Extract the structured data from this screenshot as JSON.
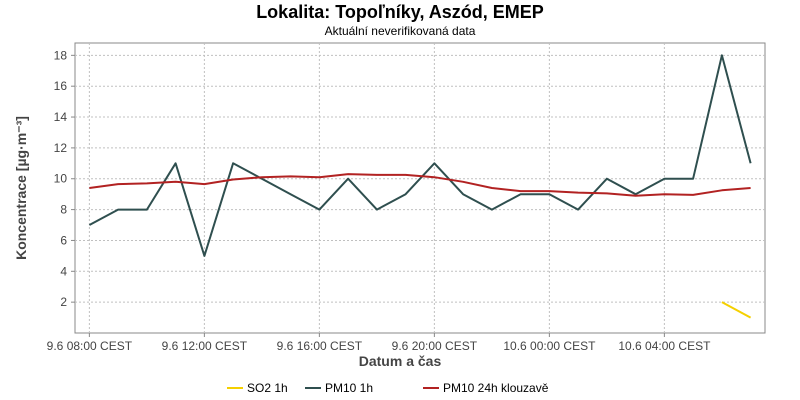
{
  "chart_data": {
    "type": "line",
    "title": "Lokalita: Topoľníky, Aszód, EMEP",
    "subtitle": "Aktuální neverifikovaná data",
    "xlabel": "Datum a čas",
    "ylabel": "Koncentrace [µg·m⁻³]",
    "x_tick_labels": [
      "9.6 08:00 CEST",
      "9.6 12:00 CEST",
      "9.6 16:00 CEST",
      "9.6 20:00 CEST",
      "10.6 00:00 CEST",
      "10.6 04:00 CEST"
    ],
    "x_tick_hours": [
      0,
      4,
      8,
      12,
      16,
      20
    ],
    "x_range_hours": [
      -0.5,
      23.5
    ],
    "y_ticks": [
      2,
      4,
      6,
      8,
      10,
      12,
      14,
      16,
      18
    ],
    "ylim": [
      0,
      18.8
    ],
    "grid": true,
    "legend_position": "bottom",
    "series": [
      {
        "name": "SO2 1h",
        "color": "#f5d000",
        "points": [
          [
            22,
            2
          ],
          [
            23,
            1
          ]
        ]
      },
      {
        "name": "PM10 1h",
        "color": "#2f4f4f",
        "points": [
          [
            0,
            7
          ],
          [
            1,
            8
          ],
          [
            2,
            8
          ],
          [
            3,
            11
          ],
          [
            4,
            5
          ],
          [
            5,
            11
          ],
          [
            6,
            10
          ],
          [
            7,
            9
          ],
          [
            8,
            8
          ],
          [
            9,
            10
          ],
          [
            10,
            8
          ],
          [
            11,
            9
          ],
          [
            12,
            11
          ],
          [
            13,
            9
          ],
          [
            14,
            8
          ],
          [
            15,
            9
          ],
          [
            16,
            9
          ],
          [
            17,
            8
          ],
          [
            18,
            10
          ],
          [
            19,
            9
          ],
          [
            20,
            10
          ],
          [
            21,
            10
          ],
          [
            22,
            18
          ],
          [
            23,
            11
          ]
        ]
      },
      {
        "name": "PM10 24h klouzavě",
        "color": "#b22222",
        "points": [
          [
            0,
            9.4
          ],
          [
            1,
            9.65
          ],
          [
            2,
            9.7
          ],
          [
            3,
            9.8
          ],
          [
            4,
            9.65
          ],
          [
            5,
            9.95
          ],
          [
            6,
            10.1
          ],
          [
            7,
            10.15
          ],
          [
            8,
            10.1
          ],
          [
            9,
            10.3
          ],
          [
            10,
            10.25
          ],
          [
            11,
            10.25
          ],
          [
            12,
            10.1
          ],
          [
            13,
            9.8
          ],
          [
            14,
            9.4
          ],
          [
            15,
            9.2
          ],
          [
            16,
            9.2
          ],
          [
            17,
            9.1
          ],
          [
            18,
            9.05
          ],
          [
            19,
            8.9
          ],
          [
            20,
            9.0
          ],
          [
            21,
            8.95
          ],
          [
            22,
            9.25
          ],
          [
            23,
            9.4
          ]
        ]
      }
    ]
  }
}
